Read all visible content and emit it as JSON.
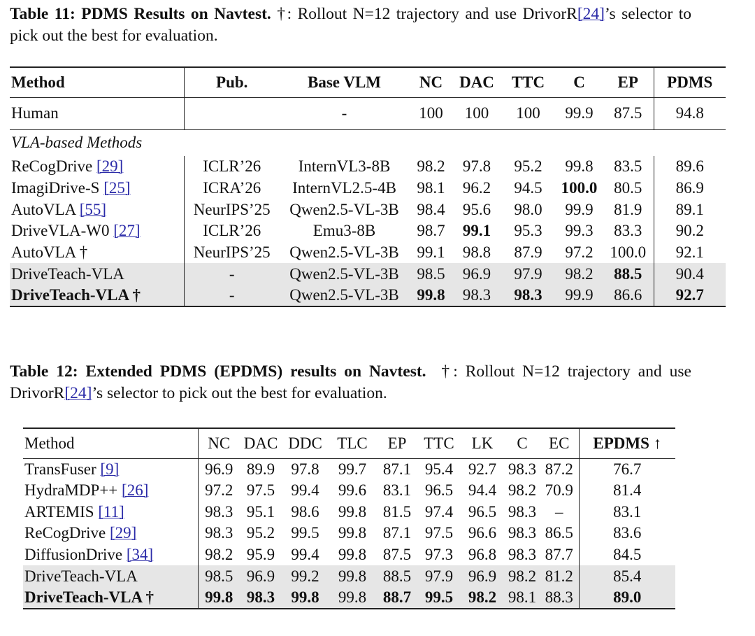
{
  "tables": [
    {
      "caption": {
        "label": "Table 11: PDMS Results on Navtest.",
        "text": " †: Rollout N=12 trajectory and use DrivorR",
        "cite": "[24]",
        "text_after": "’s selector to pick out the best for evaluation."
      },
      "columns": [
        "Method",
        "Pub.",
        "Base VLM",
        "NC",
        "DAC",
        "TTC",
        "C",
        "EP",
        "PDMS"
      ],
      "header_bold": [
        0,
        1,
        2,
        3,
        4,
        5,
        6,
        7,
        8
      ],
      "groups": [
        {
          "rows": [
            {
              "method": "Human",
              "cite": null,
              "method_bold": false,
              "highlight": false,
              "bold": [],
              "cells": [
                null,
                "-",
                "100",
                "100",
                "100",
                "99.9",
                "87.5",
                "94.8"
              ]
            }
          ]
        },
        {
          "title": "VLA-based Methods",
          "rows": [
            {
              "method": "ReCogDrive",
              "cite": "[29]",
              "method_bold": false,
              "highlight": false,
              "bold": [],
              "cells": [
                "ICLR’26",
                "InternVL3-8B",
                "98.2",
                "97.8",
                "95.2",
                "99.8",
                "83.5",
                "89.6"
              ]
            },
            {
              "method": "ImagiDrive-S",
              "cite": "[25]",
              "method_bold": false,
              "highlight": false,
              "bold": [
                5
              ],
              "cells": [
                "ICRA’26",
                "InternVL2.5-4B",
                "98.1",
                "96.2",
                "94.5",
                "100.0",
                "80.5",
                "86.9"
              ]
            },
            {
              "method": "AutoVLA",
              "cite": "[55]",
              "method_bold": false,
              "highlight": false,
              "bold": [],
              "cells": [
                "NeurIPS’25",
                "Qwen2.5-VL-3B",
                "98.4",
                "95.6",
                "98.0",
                "99.9",
                "81.9",
                "89.1"
              ]
            },
            {
              "method": "DriveVLA-W0",
              "cite": "[27]",
              "method_bold": false,
              "highlight": false,
              "bold": [
                3
              ],
              "cells": [
                "ICLR’26",
                "Emu3-8B",
                "98.7",
                "99.1",
                "95.3",
                "99.3",
                "83.3",
                "90.2"
              ]
            },
            {
              "method": "AutoVLA †",
              "cite": null,
              "method_bold": false,
              "highlight": false,
              "bold": [],
              "cells": [
                "NeurIPS’25",
                "Qwen2.5-VL-3B",
                "99.1",
                "98.8",
                "87.9",
                "97.2",
                "100.0",
                "92.1"
              ]
            },
            {
              "method": "DriveTeach-VLA",
              "cite": null,
              "method_bold": false,
              "highlight": true,
              "bold": [
                6
              ],
              "cells": [
                "-",
                "Qwen2.5-VL-3B",
                "98.5",
                "96.9",
                "97.9",
                "98.2",
                "88.5",
                "90.4"
              ]
            },
            {
              "method": "DriveTeach-VLA †",
              "cite": null,
              "method_bold": true,
              "highlight": true,
              "bold": [
                2,
                4,
                7
              ],
              "cells": [
                "-",
                "Qwen2.5-VL-3B",
                "99.8",
                "98.3",
                "98.3",
                "99.9",
                "86.6",
                "92.7"
              ]
            }
          ]
        }
      ]
    },
    {
      "caption": {
        "label": "Table 12: Extended PDMS (EPDMS) results on Navtest.",
        "text": "  †: Rollout N=12 trajectory and use DrivorR",
        "cite": "[24]",
        "text_after": "’s selector to pick out the best for evaluation."
      },
      "columns": [
        "Method",
        "NC",
        "DAC",
        "DDC",
        "TLC",
        "EP",
        "TTC",
        "LK",
        "C",
        "EC",
        "EPDMS ↑"
      ],
      "header_bold": [
        10
      ],
      "groups": [
        {
          "rows": [
            {
              "method": "TransFuser",
              "cite": "[9]",
              "method_bold": false,
              "highlight": false,
              "bold": [],
              "cells": [
                "96.9",
                "89.9",
                "97.8",
                "99.7",
                "87.1",
                "95.4",
                "92.7",
                "98.3",
                "87.2",
                "76.7"
              ]
            },
            {
              "method": "HydraMDP++",
              "cite": "[26]",
              "method_bold": false,
              "highlight": false,
              "bold": [],
              "cells": [
                "97.2",
                "97.5",
                "99.4",
                "99.6",
                "83.1",
                "96.5",
                "94.4",
                "98.2",
                "70.9",
                "81.4"
              ]
            },
            {
              "method": "ARTEMIS",
              "cite": "[11]",
              "method_bold": false,
              "highlight": false,
              "bold": [],
              "cells": [
                "98.3",
                "95.1",
                "98.6",
                "99.8",
                "81.5",
                "97.4",
                "96.5",
                "98.3",
                "–",
                "83.1"
              ]
            },
            {
              "method": "ReCogDrive",
              "cite": "[29]",
              "method_bold": false,
              "highlight": false,
              "bold": [],
              "cells": [
                "98.3",
                "95.2",
                "99.5",
                "99.8",
                "87.1",
                "97.5",
                "96.6",
                "98.3",
                "86.5",
                "83.6"
              ]
            },
            {
              "method": "DiffusionDrive",
              "cite": "[34]",
              "method_bold": false,
              "highlight": false,
              "bold": [],
              "cells": [
                "98.2",
                "95.9",
                "99.4",
                "99.8",
                "87.5",
                "97.3",
                "96.8",
                "98.3",
                "87.7",
                "84.5"
              ]
            },
            {
              "method": "DriveTeach-VLA",
              "cite": null,
              "method_bold": false,
              "highlight": true,
              "bold": [],
              "cells": [
                "98.5",
                "96.9",
                "99.2",
                "99.8",
                "88.5",
                "97.9",
                "96.9",
                "98.2",
                "81.2",
                "85.4"
              ]
            },
            {
              "method": "DriveTeach-VLA †",
              "cite": null,
              "method_bold": true,
              "highlight": true,
              "bold": [
                0,
                1,
                2,
                4,
                5,
                6,
                9
              ],
              "cells": [
                "99.8",
                "98.3",
                "99.8",
                "99.8",
                "88.7",
                "99.5",
                "98.2",
                "98.1",
                "88.3",
                "89.0"
              ]
            }
          ]
        }
      ]
    }
  ]
}
